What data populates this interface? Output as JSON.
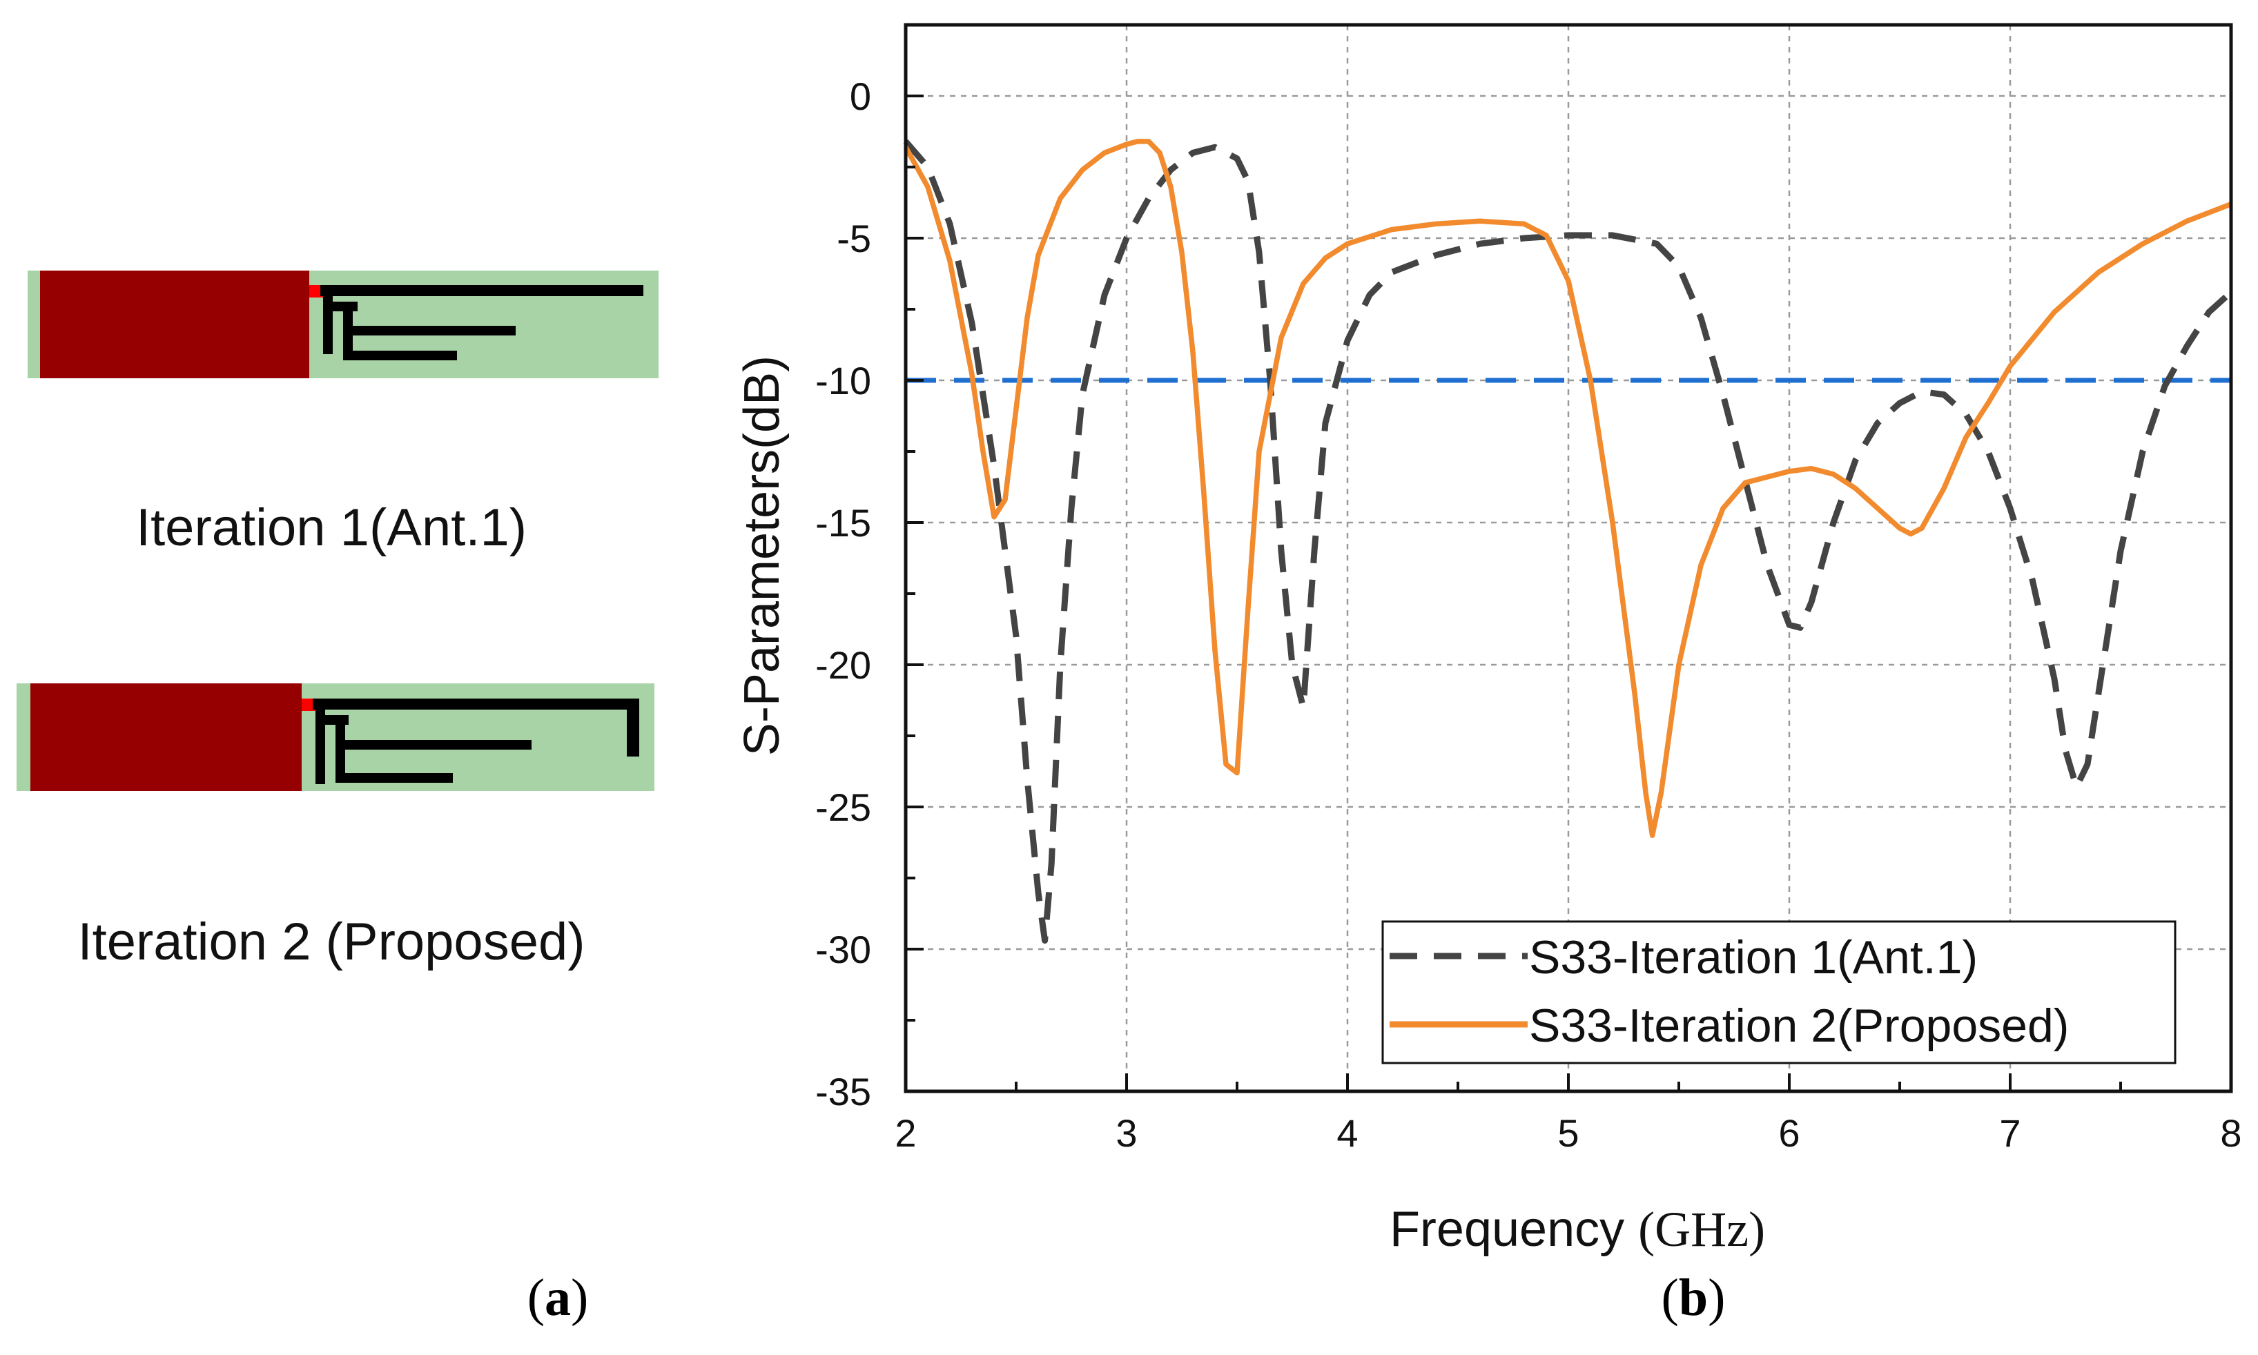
{
  "panels": {
    "a": {
      "label_open": "(",
      "label_letter": "a",
      "label_close": ")",
      "iteration1_caption": "Iteration 1(Ant.1)",
      "iteration2_caption": "Iteration 2 (Proposed)"
    },
    "b": {
      "label_open": "(",
      "label_letter": "b",
      "label_close": ")"
    }
  },
  "colors": {
    "substrate": "#a8d3a6",
    "ground": "#970000",
    "feed": "#ff0000",
    "trace": "#000000"
  },
  "chart_data": {
    "type": "line",
    "xlabel": "Frequency",
    "xlabel_unit": "(GHz)",
    "ylabel": "S-Parameters(dB)",
    "xlim": [
      2,
      8
    ],
    "ylim": [
      -35,
      2.5
    ],
    "xticks": [
      2,
      3,
      4,
      5,
      6,
      7,
      8
    ],
    "yticks": [
      0,
      -5,
      -10,
      -15,
      -20,
      -25,
      -30,
      -35
    ],
    "grid": true,
    "legend_position": "bottom-right",
    "reference_line": {
      "y": -10,
      "color": "#1f6fd1"
    },
    "series": [
      {
        "name": "S33-Iteration 1(Ant.1)",
        "color": "#444444",
        "style": "dashed",
        "x": [
          2.0,
          2.1,
          2.2,
          2.3,
          2.4,
          2.5,
          2.55,
          2.6,
          2.63,
          2.66,
          2.7,
          2.75,
          2.8,
          2.9,
          3.0,
          3.1,
          3.2,
          3.3,
          3.4,
          3.5,
          3.55,
          3.6,
          3.65,
          3.7,
          3.75,
          3.8,
          3.85,
          3.9,
          4.0,
          4.1,
          4.2,
          4.4,
          4.6,
          4.8,
          5.0,
          5.2,
          5.4,
          5.5,
          5.6,
          5.7,
          5.8,
          5.9,
          6.0,
          6.05,
          6.1,
          6.2,
          6.3,
          6.4,
          6.5,
          6.6,
          6.7,
          6.8,
          6.9,
          7.0,
          7.1,
          7.2,
          7.25,
          7.3,
          7.35,
          7.4,
          7.5,
          7.6,
          7.7,
          7.8,
          7.9,
          8.0
        ],
        "y": [
          -1.6,
          -2.5,
          -4.5,
          -8.0,
          -13.0,
          -19.0,
          -24.0,
          -28.0,
          -29.7,
          -27.0,
          -20.0,
          -14.5,
          -10.5,
          -7.0,
          -5.0,
          -3.6,
          -2.6,
          -2.0,
          -1.8,
          -2.2,
          -3.0,
          -5.5,
          -10.0,
          -16.0,
          -20.0,
          -21.5,
          -16.0,
          -11.5,
          -8.6,
          -7.0,
          -6.2,
          -5.6,
          -5.2,
          -5.0,
          -4.9,
          -4.9,
          -5.2,
          -6.0,
          -7.8,
          -10.5,
          -13.5,
          -16.5,
          -18.6,
          -18.7,
          -17.8,
          -15.0,
          -12.8,
          -11.5,
          -10.8,
          -10.4,
          -10.5,
          -11.2,
          -12.5,
          -14.5,
          -17.0,
          -20.5,
          -23.0,
          -24.3,
          -23.5,
          -21.0,
          -16.0,
          -12.5,
          -10.2,
          -8.8,
          -7.6,
          -6.9
        ]
      },
      {
        "name": "S33-Iteration 2(Proposed)",
        "color": "#f28a2e",
        "style": "solid",
        "x": [
          2.0,
          2.1,
          2.2,
          2.3,
          2.35,
          2.4,
          2.45,
          2.5,
          2.55,
          2.6,
          2.7,
          2.8,
          2.9,
          3.0,
          3.05,
          3.1,
          3.15,
          3.2,
          3.25,
          3.3,
          3.35,
          3.4,
          3.45,
          3.5,
          3.55,
          3.6,
          3.7,
          3.8,
          3.9,
          4.0,
          4.2,
          4.4,
          4.6,
          4.8,
          4.9,
          5.0,
          5.1,
          5.2,
          5.3,
          5.35,
          5.38,
          5.42,
          5.5,
          5.6,
          5.7,
          5.8,
          6.0,
          6.1,
          6.2,
          6.3,
          6.4,
          6.5,
          6.55,
          6.6,
          6.7,
          6.8,
          6.9,
          7.0,
          7.2,
          7.4,
          7.6,
          7.8,
          8.0
        ],
        "y": [
          -1.8,
          -3.2,
          -5.8,
          -9.8,
          -12.5,
          -14.8,
          -14.2,
          -11.0,
          -7.8,
          -5.6,
          -3.6,
          -2.6,
          -2.0,
          -1.7,
          -1.6,
          -1.6,
          -2.0,
          -3.2,
          -5.5,
          -9.0,
          -14.0,
          -19.5,
          -23.5,
          -23.8,
          -18.0,
          -12.5,
          -8.5,
          -6.6,
          -5.7,
          -5.2,
          -4.7,
          -4.5,
          -4.4,
          -4.5,
          -4.9,
          -6.5,
          -10.0,
          -15.0,
          -21.0,
          -24.5,
          -26.0,
          -24.5,
          -20.0,
          -16.5,
          -14.5,
          -13.6,
          -13.2,
          -13.1,
          -13.3,
          -13.8,
          -14.5,
          -15.2,
          -15.4,
          -15.2,
          -13.8,
          -12.0,
          -10.8,
          -9.5,
          -7.6,
          -6.2,
          -5.2,
          -4.4,
          -3.8
        ]
      }
    ]
  }
}
